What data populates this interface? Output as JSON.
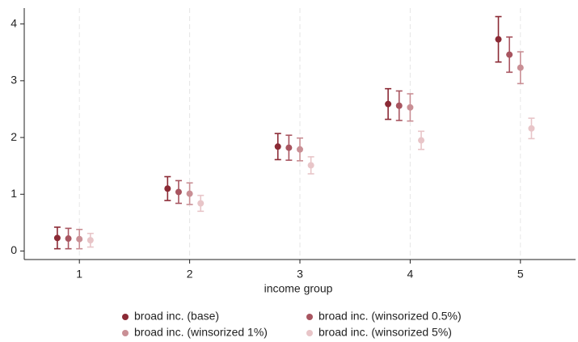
{
  "chart_data": {
    "type": "scatter",
    "x_label": "income group",
    "xlim": [
      0.5,
      5.5
    ],
    "xticks": [
      1,
      2,
      3,
      4,
      5
    ],
    "ylim": [
      -0.15,
      4.28
    ],
    "yticks": [
      0,
      1,
      2,
      3,
      4
    ],
    "grid": "x",
    "legend": "bottom",
    "series": [
      {
        "name": "broad inc. (base)",
        "color": "#8b2a35",
        "x": [
          0.8,
          1.8,
          2.8,
          3.8,
          4.8
        ],
        "values": [
          0.23,
          1.1,
          1.84,
          2.59,
          3.73
        ],
        "errors": [
          0.19,
          0.21,
          0.23,
          0.27,
          0.4
        ]
      },
      {
        "name": "broad inc. (winsorized 0.5%)",
        "color": "#a85560",
        "x": [
          0.9,
          1.9,
          2.9,
          3.9,
          4.9
        ],
        "values": [
          0.22,
          1.04,
          1.82,
          2.56,
          3.46
        ],
        "errors": [
          0.18,
          0.2,
          0.22,
          0.26,
          0.31
        ]
      },
      {
        "name": "broad inc. (winsorized 1%)",
        "color": "#c98f95",
        "x": [
          1,
          2,
          3,
          4,
          5
        ],
        "values": [
          0.21,
          1.01,
          1.79,
          2.53,
          3.23
        ],
        "errors": [
          0.17,
          0.19,
          0.2,
          0.24,
          0.28
        ]
      },
      {
        "name": "broad inc. (winsorized 5%)",
        "color": "#e8c5c8",
        "x": [
          1.1,
          2.1,
          3.1,
          4.1,
          5.1
        ],
        "values": [
          0.19,
          0.84,
          1.51,
          1.95,
          2.16
        ],
        "errors": [
          0.12,
          0.14,
          0.15,
          0.16,
          0.18
        ]
      }
    ]
  }
}
